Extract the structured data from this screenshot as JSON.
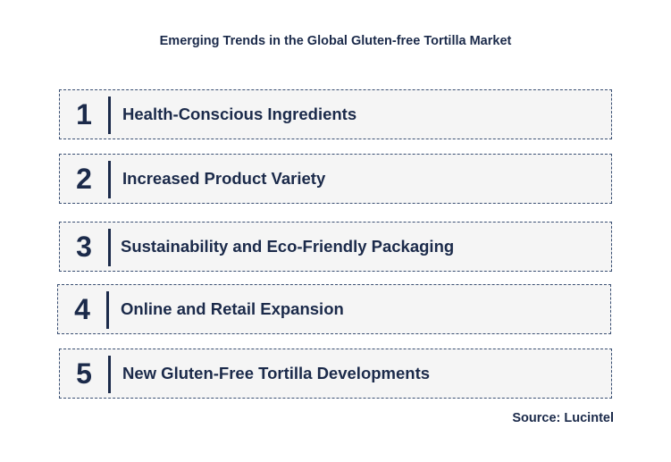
{
  "title": "Emerging Trends in the Global Gluten-free Tortilla Market",
  "trends": [
    {
      "number": "1",
      "label": "Health-Conscious Ingredients"
    },
    {
      "number": "2",
      "label": "Increased Product Variety"
    },
    {
      "number": "3",
      "label": "Sustainability and Eco-Friendly Packaging"
    },
    {
      "number": "4",
      "label": "Online and Retail Expansion"
    },
    {
      "number": "5",
      "label": "New Gluten-Free Tortilla Developments"
    }
  ],
  "source": "Source: Lucintel",
  "colors": {
    "text": "#1b2a4a",
    "box_border": "#3a4f73",
    "box_fill": "#f5f5f5"
  }
}
